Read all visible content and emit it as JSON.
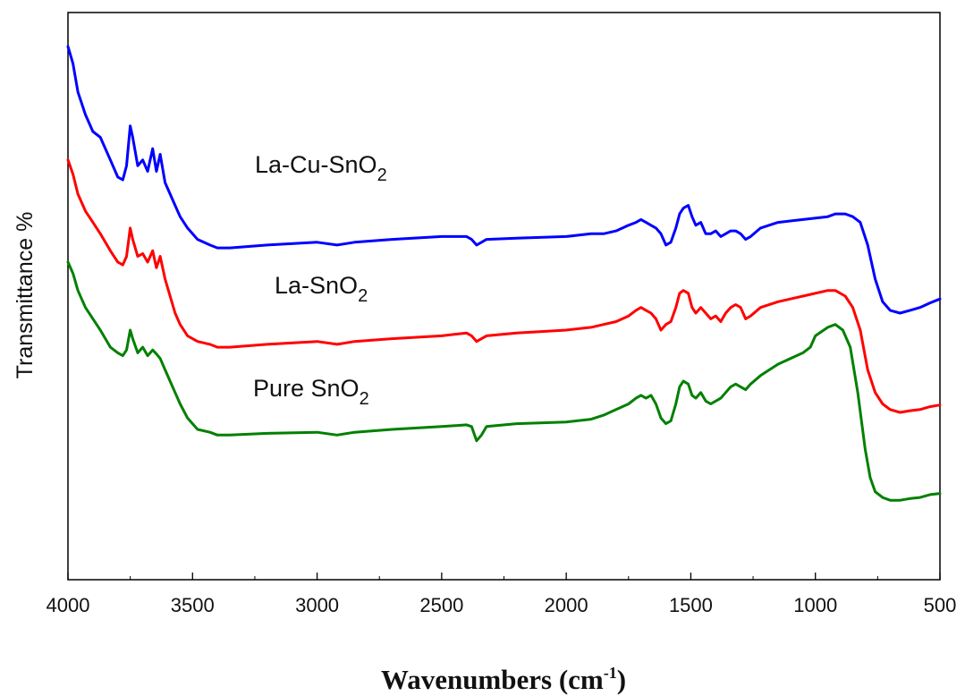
{
  "chart_data": {
    "type": "line",
    "xlabel": "Wavenumbers (cm",
    "xlabel_unit_sup": "-1",
    "xlabel_close": ")",
    "ylabel": "Transmittance %",
    "xlim": [
      4000,
      500
    ],
    "x_reversed": true,
    "xticks": [
      "4000",
      "3500",
      "3000",
      "2500",
      "2000",
      "1500",
      "1000",
      "500"
    ],
    "ylim": [
      0,
      100
    ],
    "y_ticks_shown": false,
    "grid": false,
    "legend": "inline-labels",
    "series": [
      {
        "name": "La-Cu-SnO",
        "name_sub": "2",
        "color": "#0000ff",
        "points": [
          [
            4000,
            94
          ],
          [
            3980,
            91
          ],
          [
            3960,
            86
          ],
          [
            3930,
            82
          ],
          [
            3900,
            79
          ],
          [
            3870,
            78
          ],
          [
            3830,
            74
          ],
          [
            3800,
            71
          ],
          [
            3780,
            70.5
          ],
          [
            3765,
            73
          ],
          [
            3750,
            80
          ],
          [
            3740,
            78
          ],
          [
            3720,
            73
          ],
          [
            3700,
            74
          ],
          [
            3680,
            72
          ],
          [
            3660,
            76
          ],
          [
            3645,
            72
          ],
          [
            3630,
            75
          ],
          [
            3610,
            70
          ],
          [
            3590,
            68
          ],
          [
            3570,
            66
          ],
          [
            3550,
            64
          ],
          [
            3520,
            62
          ],
          [
            3480,
            60
          ],
          [
            3430,
            59
          ],
          [
            3400,
            58.5
          ],
          [
            3350,
            58.5
          ],
          [
            3200,
            59
          ],
          [
            3000,
            59.5
          ],
          [
            2920,
            59
          ],
          [
            2850,
            59.5
          ],
          [
            2700,
            60
          ],
          [
            2500,
            60.5
          ],
          [
            2400,
            60.5
          ],
          [
            2380,
            60
          ],
          [
            2360,
            59
          ],
          [
            2340,
            59.5
          ],
          [
            2320,
            60
          ],
          [
            2200,
            60.2
          ],
          [
            2000,
            60.5
          ],
          [
            1900,
            61
          ],
          [
            1850,
            61
          ],
          [
            1800,
            61.5
          ],
          [
            1750,
            62.5
          ],
          [
            1720,
            63
          ],
          [
            1700,
            63.5
          ],
          [
            1680,
            63
          ],
          [
            1660,
            62.5
          ],
          [
            1640,
            62
          ],
          [
            1620,
            61
          ],
          [
            1600,
            59
          ],
          [
            1580,
            59.5
          ],
          [
            1560,
            62
          ],
          [
            1545,
            64.5
          ],
          [
            1530,
            65.5
          ],
          [
            1510,
            66
          ],
          [
            1495,
            64
          ],
          [
            1480,
            62.5
          ],
          [
            1460,
            63
          ],
          [
            1440,
            61
          ],
          [
            1420,
            61
          ],
          [
            1400,
            61.5
          ],
          [
            1380,
            60.5
          ],
          [
            1360,
            61
          ],
          [
            1340,
            61.5
          ],
          [
            1320,
            61.5
          ],
          [
            1300,
            61
          ],
          [
            1280,
            60
          ],
          [
            1260,
            60.5
          ],
          [
            1220,
            62
          ],
          [
            1150,
            63
          ],
          [
            1050,
            63.5
          ],
          [
            950,
            64
          ],
          [
            920,
            64.5
          ],
          [
            880,
            64.5
          ],
          [
            850,
            64
          ],
          [
            820,
            63
          ],
          [
            790,
            59
          ],
          [
            760,
            53
          ],
          [
            730,
            49
          ],
          [
            700,
            47.5
          ],
          [
            660,
            47
          ],
          [
            620,
            47.5
          ],
          [
            580,
            48
          ],
          [
            540,
            48.8
          ],
          [
            500,
            49.5
          ]
        ]
      },
      {
        "name": "La-SnO",
        "name_sub": "2",
        "color": "#ff0000",
        "points": [
          [
            4000,
            74
          ],
          [
            3980,
            71.5
          ],
          [
            3960,
            68
          ],
          [
            3930,
            65
          ],
          [
            3900,
            63
          ],
          [
            3870,
            61
          ],
          [
            3830,
            58
          ],
          [
            3800,
            56
          ],
          [
            3780,
            55.5
          ],
          [
            3765,
            57
          ],
          [
            3750,
            62
          ],
          [
            3740,
            60
          ],
          [
            3720,
            57
          ],
          [
            3700,
            57.5
          ],
          [
            3680,
            56
          ],
          [
            3660,
            58
          ],
          [
            3645,
            55
          ],
          [
            3630,
            57
          ],
          [
            3610,
            53
          ],
          [
            3590,
            50
          ],
          [
            3570,
            47
          ],
          [
            3550,
            45
          ],
          [
            3520,
            43
          ],
          [
            3480,
            42
          ],
          [
            3430,
            41.5
          ],
          [
            3400,
            41
          ],
          [
            3350,
            41
          ],
          [
            3200,
            41.5
          ],
          [
            3000,
            42
          ],
          [
            2920,
            41.5
          ],
          [
            2850,
            42
          ],
          [
            2700,
            42.5
          ],
          [
            2500,
            43
          ],
          [
            2400,
            43.5
          ],
          [
            2380,
            43
          ],
          [
            2360,
            42
          ],
          [
            2340,
            42.5
          ],
          [
            2320,
            43
          ],
          [
            2200,
            43.5
          ],
          [
            2000,
            44
          ],
          [
            1900,
            44.5
          ],
          [
            1850,
            45
          ],
          [
            1800,
            45.5
          ],
          [
            1750,
            46.5
          ],
          [
            1720,
            47.5
          ],
          [
            1700,
            48
          ],
          [
            1680,
            47.5
          ],
          [
            1660,
            47
          ],
          [
            1640,
            46
          ],
          [
            1620,
            44
          ],
          [
            1600,
            45
          ],
          [
            1580,
            45.5
          ],
          [
            1560,
            48
          ],
          [
            1545,
            50.5
          ],
          [
            1530,
            51
          ],
          [
            1510,
            50.5
          ],
          [
            1495,
            48
          ],
          [
            1480,
            47
          ],
          [
            1460,
            48
          ],
          [
            1440,
            47
          ],
          [
            1420,
            46
          ],
          [
            1400,
            46.5
          ],
          [
            1380,
            45.5
          ],
          [
            1360,
            47
          ],
          [
            1340,
            48
          ],
          [
            1320,
            48.5
          ],
          [
            1300,
            48
          ],
          [
            1280,
            46
          ],
          [
            1260,
            46.5
          ],
          [
            1220,
            48
          ],
          [
            1150,
            49
          ],
          [
            1050,
            50
          ],
          [
            950,
            51
          ],
          [
            920,
            51
          ],
          [
            880,
            50
          ],
          [
            850,
            48
          ],
          [
            820,
            44
          ],
          [
            790,
            37
          ],
          [
            760,
            33
          ],
          [
            730,
            31
          ],
          [
            700,
            30
          ],
          [
            660,
            29.5
          ],
          [
            620,
            29.8
          ],
          [
            580,
            30
          ],
          [
            540,
            30.5
          ],
          [
            500,
            30.8
          ]
        ]
      },
      {
        "name": "Pure SnO",
        "name_sub": "2",
        "color": "#008000",
        "points": [
          [
            4000,
            56
          ],
          [
            3980,
            54
          ],
          [
            3960,
            51
          ],
          [
            3930,
            48
          ],
          [
            3900,
            46
          ],
          [
            3870,
            44
          ],
          [
            3830,
            41
          ],
          [
            3800,
            40
          ],
          [
            3780,
            39.5
          ],
          [
            3765,
            40.5
          ],
          [
            3750,
            44
          ],
          [
            3740,
            42.5
          ],
          [
            3720,
            40
          ],
          [
            3700,
            41
          ],
          [
            3680,
            39.5
          ],
          [
            3660,
            40.5
          ],
          [
            3645,
            39.8
          ],
          [
            3630,
            39
          ],
          [
            3610,
            37
          ],
          [
            3590,
            35
          ],
          [
            3570,
            33
          ],
          [
            3550,
            31
          ],
          [
            3520,
            28.5
          ],
          [
            3480,
            26.5
          ],
          [
            3430,
            26
          ],
          [
            3400,
            25.5
          ],
          [
            3350,
            25.5
          ],
          [
            3200,
            25.8
          ],
          [
            3000,
            26
          ],
          [
            2920,
            25.5
          ],
          [
            2850,
            26
          ],
          [
            2700,
            26.5
          ],
          [
            2500,
            27
          ],
          [
            2400,
            27.3
          ],
          [
            2380,
            27
          ],
          [
            2360,
            24.5
          ],
          [
            2340,
            25.5
          ],
          [
            2320,
            27
          ],
          [
            2200,
            27.5
          ],
          [
            2000,
            27.8
          ],
          [
            1900,
            28.3
          ],
          [
            1850,
            29
          ],
          [
            1800,
            30
          ],
          [
            1750,
            31
          ],
          [
            1720,
            32
          ],
          [
            1700,
            32.5
          ],
          [
            1680,
            32
          ],
          [
            1660,
            32.5
          ],
          [
            1640,
            31
          ],
          [
            1620,
            28.5
          ],
          [
            1600,
            27.5
          ],
          [
            1580,
            28
          ],
          [
            1560,
            31
          ],
          [
            1545,
            34
          ],
          [
            1530,
            35
          ],
          [
            1510,
            34.5
          ],
          [
            1495,
            32.5
          ],
          [
            1480,
            32
          ],
          [
            1460,
            33
          ],
          [
            1440,
            31.5
          ],
          [
            1420,
            31
          ],
          [
            1400,
            31.5
          ],
          [
            1380,
            32
          ],
          [
            1360,
            33
          ],
          [
            1340,
            34
          ],
          [
            1320,
            34.5
          ],
          [
            1300,
            34
          ],
          [
            1280,
            33.5
          ],
          [
            1260,
            34.5
          ],
          [
            1220,
            36
          ],
          [
            1150,
            38
          ],
          [
            1050,
            40
          ],
          [
            1020,
            41
          ],
          [
            1000,
            43
          ],
          [
            950,
            44.5
          ],
          [
            920,
            45
          ],
          [
            890,
            44
          ],
          [
            860,
            41
          ],
          [
            830,
            33
          ],
          [
            800,
            23
          ],
          [
            780,
            18
          ],
          [
            760,
            15.5
          ],
          [
            730,
            14.5
          ],
          [
            700,
            14
          ],
          [
            660,
            14
          ],
          [
            620,
            14.3
          ],
          [
            580,
            14.5
          ],
          [
            540,
            15
          ],
          [
            500,
            15.2
          ]
        ]
      }
    ]
  }
}
